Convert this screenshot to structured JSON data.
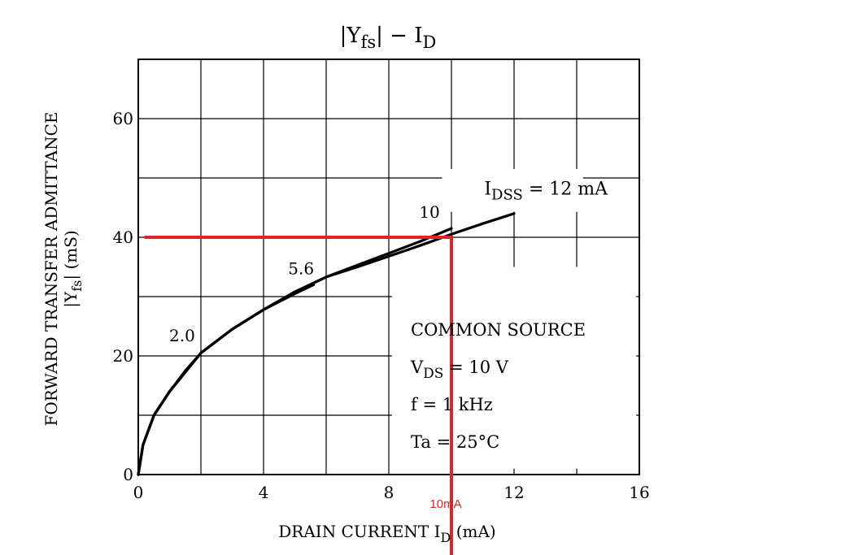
{
  "chart_data": {
    "type": "line",
    "title": {
      "main": "|Y",
      "sub": "fs",
      "tail": "|  −  I",
      "tail_sub": "D"
    },
    "xlabel": {
      "main": "DRAIN CURRENT  I",
      "sub": "D",
      "unit": "(mA)"
    },
    "ylabel": {
      "line1": "FORWARD TRANSFER ADMITTANCE",
      "line2_main": "|Y",
      "line2_sub": "fs",
      "line2_tail": "|   (mS)"
    },
    "xlim": [
      0,
      16
    ],
    "ylim": [
      0,
      70
    ],
    "x_ticks": [
      0,
      4,
      8,
      12,
      16
    ],
    "y_ticks": [
      0,
      20,
      40,
      60
    ],
    "x_grid": [
      0,
      2,
      4,
      6,
      8,
      10,
      12,
      14,
      16
    ],
    "y_grid": [
      0,
      10,
      20,
      30,
      40,
      50,
      60,
      70
    ],
    "grid": true,
    "series": [
      {
        "name": "2.0",
        "x": [
          0,
          0.15,
          0.5,
          1.0,
          1.5,
          2.0
        ],
        "y": [
          0,
          5,
          10,
          14,
          17.5,
          20.5
        ]
      },
      {
        "name": "5.6",
        "x": [
          0,
          0.15,
          0.5,
          1,
          2,
          3,
          4,
          5,
          5.6
        ],
        "y": [
          0,
          5,
          10,
          14,
          20.5,
          24.5,
          27.8,
          30.5,
          32
        ]
      },
      {
        "name": "10",
        "x": [
          0,
          0.15,
          0.5,
          1,
          2,
          3,
          4,
          5,
          6,
          7,
          8,
          9,
          10
        ],
        "y": [
          0,
          5,
          10,
          14,
          20.5,
          24.5,
          27.8,
          30.8,
          33.3,
          35.3,
          37.3,
          39.3,
          41.5
        ]
      },
      {
        "name": "IDSS = 12 mA",
        "x": [
          0,
          0.15,
          0.5,
          1,
          2,
          3,
          4,
          5,
          6,
          7,
          8,
          9,
          10,
          11,
          12
        ],
        "y": [
          0,
          5,
          10,
          14,
          20.5,
          24.5,
          27.8,
          30.8,
          33.3,
          35,
          36.8,
          38.6,
          40.5,
          42.3,
          44
        ]
      }
    ],
    "curve_labels": [
      {
        "text": "2.0",
        "x": 1.4,
        "y": 22.5
      },
      {
        "text": "5.6",
        "x": 5.2,
        "y": 33.8
      },
      {
        "text": "10",
        "x": 9.3,
        "y": 43.3
      }
    ],
    "idss_label": {
      "main": "I",
      "sub": "DSS",
      "tail": " = 12 mA",
      "x": 11.1,
      "y": 47.2
    },
    "conditions": [
      {
        "main": "COMMON SOURCE",
        "sub": "",
        "tail": ""
      },
      {
        "main": "V",
        "sub": "DS",
        "tail": " = 10 V"
      },
      {
        "main": "f = 1 kHz",
        "sub": "",
        "tail": ""
      },
      {
        "main": "Ta = 25°C",
        "sub": "",
        "tail": ""
      }
    ],
    "annotation": {
      "color": "#e0242b",
      "point": {
        "x": 10,
        "y": 40
      },
      "label": "10mA"
    }
  },
  "colors": {
    "line": "#000000",
    "grid": "#000000",
    "annotation": "#e0242b",
    "background": "#ffffff"
  }
}
